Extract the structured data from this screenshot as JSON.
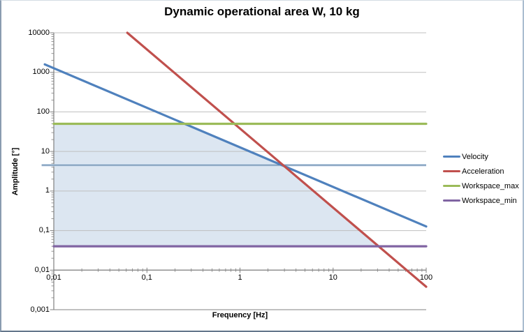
{
  "chart_data": {
    "type": "line",
    "title": "Dynamic operational area W, 10 kg",
    "xlabel": "Frequency [Hz]",
    "ylabel": "Amplitude [°]",
    "x_scale": "log",
    "y_scale": "log",
    "xlim": [
      0.01,
      100
    ],
    "ylim": [
      0.001,
      10000
    ],
    "grid": "horizontal-major",
    "legend_position": "right",
    "x_ticks": [
      {
        "v": 0.01,
        "label": "0,01"
      },
      {
        "v": 0.1,
        "label": "0,1"
      },
      {
        "v": 1,
        "label": "1"
      },
      {
        "v": 10,
        "label": "10"
      },
      {
        "v": 100,
        "label": "100"
      }
    ],
    "y_ticks": [
      {
        "v": 10000,
        "label": "10000"
      },
      {
        "v": 1000,
        "label": "1000"
      },
      {
        "v": 100,
        "label": "100"
      },
      {
        "v": 10,
        "label": "10"
      },
      {
        "v": 1,
        "label": "1"
      },
      {
        "v": 0.1,
        "label": "0,1"
      },
      {
        "v": 0.01,
        "label": "0,01"
      },
      {
        "v": 0.001,
        "label": "0,001"
      }
    ],
    "series": [
      {
        "name": "Velocity",
        "color": "#4f81bd",
        "relation": "A ≈ 12.7 / f",
        "points": [
          [
            0.008,
            1590
          ],
          [
            100,
            0.127
          ]
        ]
      },
      {
        "name": "Acceleration",
        "color": "#c0504d",
        "relation": "A ≈ 38 / f²",
        "points": [
          [
            0.0616,
            10000
          ],
          [
            100,
            0.0038
          ]
        ]
      },
      {
        "name": "Workspace_max",
        "color": "#9bbb59",
        "relation": "A = 50",
        "points": [
          [
            0.01,
            50
          ],
          [
            100,
            50
          ]
        ]
      },
      {
        "name": "Workspace_min",
        "color": "#8064a2",
        "relation": "A = 0.04",
        "points": [
          [
            0.01,
            0.04
          ],
          [
            100,
            0.04
          ]
        ]
      }
    ],
    "reference_line": {
      "approx_value": 4.5,
      "halo_color": "#c3d6ec",
      "core_color": "#60809f",
      "points": [
        [
          0.0074,
          4.5
        ],
        [
          100,
          4.5
        ]
      ]
    },
    "shaded_area": {
      "description": "dynamic operational area W",
      "color": "#dce6f1",
      "vertices": [
        [
          0.01,
          50
        ],
        [
          0.254,
          50
        ],
        [
          2.99,
          4.25
        ],
        [
          30.8,
          0.04
        ],
        [
          0.01,
          0.04
        ]
      ]
    },
    "colors": {
      "axis": "#808080",
      "gridline": "#bfbfbf"
    }
  }
}
